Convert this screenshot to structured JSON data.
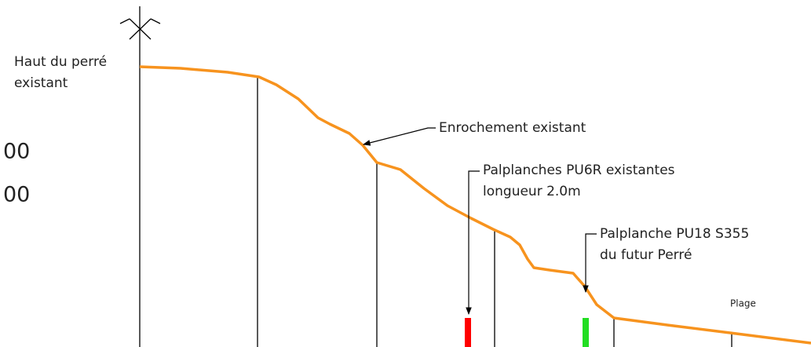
{
  "labels": {
    "top_left": [
      "Haut du perré",
      "existant"
    ],
    "cut_off": [
      "00",
      "00"
    ],
    "enrochement": "Enrochement existant",
    "palplanches_existantes": [
      "Palplanches PU6R existantes",
      "longueur 2.0m"
    ],
    "palplanche_future": [
      "Palplanche PU18 S355",
      "du futur Perré"
    ],
    "plage": "Plage"
  }
}
